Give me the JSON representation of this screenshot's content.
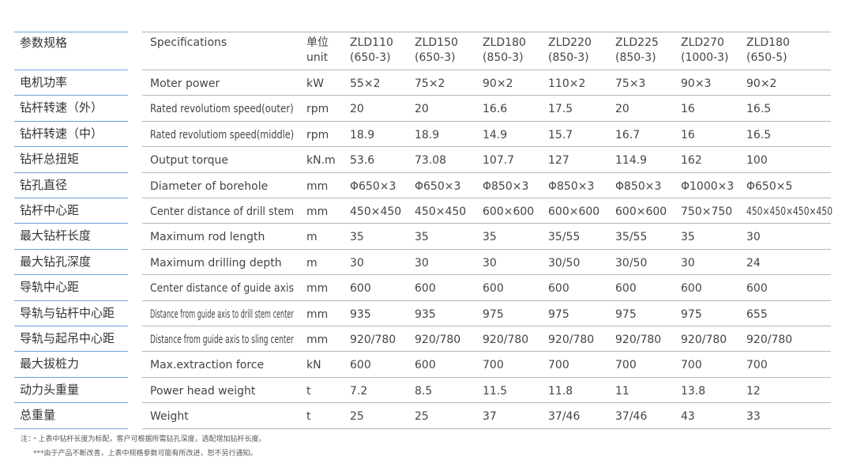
{
  "header": {
    "zh": "参数规格",
    "en": "Specifications",
    "unit_zh": "单位",
    "unit_en": "unit",
    "models": [
      {
        "name": "ZLD110",
        "config": "(650-3)"
      },
      {
        "name": "ZLD150",
        "config": "(650-3)"
      },
      {
        "name": "ZLD180",
        "config": "(850-3)"
      },
      {
        "name": "ZLD220",
        "config": "(850-3)"
      },
      {
        "name": "ZLD225",
        "config": "(850-3)"
      },
      {
        "name": "ZLD270",
        "config": "(1000-3)"
      },
      {
        "name": "ZLD180",
        "config": "(650-5)"
      }
    ]
  },
  "table": {
    "rows": [
      [
        "电机功率",
        "Moter power",
        "kW",
        "55×2",
        "75×2",
        "90×2",
        "110×2",
        "75×3",
        "90×3",
        "90×2"
      ],
      [
        "钻杆转速（外）",
        "Rated revolutiom speed(outer)",
        "rpm",
        "20",
        "20",
        "16.6",
        "17.5",
        "20",
        "16",
        "16.5"
      ],
      [
        "钻杆转速（中）",
        "Rated revolutiom speed(middle)",
        "rpm",
        "18.9",
        "18.9",
        "14.9",
        "15.7",
        "16.7",
        "16",
        "16.5"
      ],
      [
        "钻杆总扭矩",
        "Output torque",
        "kN.m",
        "53.6",
        "73.08",
        "107.7",
        "127",
        "114.9",
        "162",
        "100"
      ],
      [
        "钻孔直径",
        "Diameter of borehole",
        "mm",
        "Φ650×3",
        "Φ650×3",
        "Φ850×3",
        "Φ850×3",
        "Φ850×3",
        "Φ1000×3",
        "Φ650×5"
      ],
      [
        "钻杆中心距",
        "Center distance of drill stem",
        "mm",
        "450×450",
        "450×450",
        "600×600",
        "600×600",
        "600×600",
        "750×750",
        "450×450×450×450"
      ],
      [
        "最大钻杆长度",
        "Maximum rod length",
        "m",
        "35",
        "35",
        "35",
        "35/55",
        "35/55",
        "35",
        "30"
      ],
      [
        "最大钻孔深度",
        "Maximum drilling depth",
        "m",
        "30",
        "30",
        "30",
        "30/50",
        "30/50",
        "30",
        "24"
      ],
      [
        "导轨中心距",
        "Center distance of guide axis",
        "mm",
        "600",
        "600",
        "600",
        "600",
        "600",
        "600",
        "600"
      ],
      [
        "导轨与钻杆中心距",
        "Distance from guide axis to drill stem center",
        "mm",
        "935",
        "935",
        "975",
        "975",
        "975",
        "975",
        "655"
      ],
      [
        "导轨与起吊中心距",
        "Distance from guide axis to sling center",
        "mm",
        "920/780",
        "920/780",
        "920/780",
        "920/780",
        "920/780",
        "920/780",
        "920/780"
      ],
      [
        "最大拔桩力",
        "Max.extraction force",
        "kN",
        "600",
        "600",
        "700",
        "700",
        "700",
        "700",
        "700"
      ],
      [
        "动力头重量",
        "Power head weight",
        "t",
        "7.2",
        "8.5",
        "11.5",
        "11.8",
        "11",
        "13.8",
        "12"
      ],
      [
        "总重量",
        "Weight",
        "t",
        "25",
        "25",
        "37",
        "37/46",
        "37/46",
        "43",
        "33"
      ]
    ]
  },
  "notes": [
    "注：・上表中钻杆长度为标配，客户可根据所需钻孔深度，选配增加钻杆长度。",
    "***由于产品不断改善，上表中规格参数可能有所改进，恕不另行通知。"
  ]
}
